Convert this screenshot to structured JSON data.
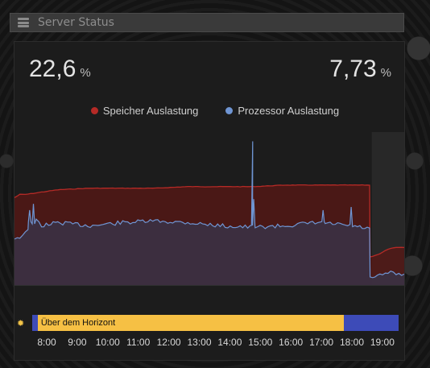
{
  "header": {
    "title": "Server Status",
    "icon": "server-icon"
  },
  "stats": {
    "left": {
      "value": "22,6",
      "unit": "%"
    },
    "right": {
      "value": "7,73",
      "unit": "%"
    }
  },
  "legend": [
    {
      "label": "Speicher Auslastung",
      "color": "#b52a26"
    },
    {
      "label": "Prozessor Auslastung",
      "color": "#6f95d3"
    }
  ],
  "sun": {
    "icon": "sun-icon",
    "segments": [
      {
        "state": "night",
        "label": "",
        "fraction": 0.015,
        "color": "#3d4bb8"
      },
      {
        "state": "day",
        "label": "Über dem Horizont",
        "fraction": 0.835,
        "color": "#f6c044"
      },
      {
        "state": "night",
        "label": "",
        "fraction": 0.15,
        "color": "#3d4bb8"
      }
    ]
  },
  "time_labels": [
    "8:00",
    "9:00",
    "10:00",
    "11:00",
    "12:00",
    "13:00",
    "14:00",
    "15:00",
    "16:00",
    "17:00",
    "18:00",
    "19:00"
  ],
  "chart_data": {
    "type": "area",
    "x_start": "7:40",
    "x_end": "19:40",
    "series": [
      {
        "name": "Speicher Auslastung",
        "color": "#b52a26",
        "points": [
          [
            "7:40",
            56
          ],
          [
            "7:50",
            58
          ],
          [
            "8:00",
            58
          ],
          [
            "8:20",
            59
          ],
          [
            "8:40",
            60
          ],
          [
            "9:00",
            61
          ],
          [
            "10:00",
            62
          ],
          [
            "11:00",
            62
          ],
          [
            "12:00",
            62
          ],
          [
            "13:00",
            63
          ],
          [
            "14:00",
            63
          ],
          [
            "15:00",
            63
          ],
          [
            "16:00",
            64
          ],
          [
            "17:00",
            64
          ],
          [
            "18:00",
            64
          ],
          [
            "18:36",
            64
          ],
          [
            "18:37",
            18
          ],
          [
            "18:55",
            20
          ],
          [
            "19:10",
            23
          ],
          [
            "19:25",
            24
          ],
          [
            "19:40",
            24
          ]
        ]
      },
      {
        "name": "Prozessor Auslastung",
        "color": "#6f95d3",
        "points": [
          [
            "7:40",
            30
          ],
          [
            "7:50",
            31
          ],
          [
            "8:00",
            33
          ],
          [
            "8:10",
            40
          ],
          [
            "8:15",
            38
          ],
          [
            "8:20",
            42
          ],
          [
            "8:30",
            38
          ],
          [
            "9:00",
            40
          ],
          [
            "10:00",
            38
          ],
          [
            "11:00",
            40
          ],
          [
            "12:00",
            41
          ],
          [
            "13:00",
            40
          ],
          [
            "14:00",
            38
          ],
          [
            "15:00",
            37
          ],
          [
            "16:00",
            38
          ],
          [
            "17:00",
            40
          ],
          [
            "18:00",
            38
          ],
          [
            "18:36",
            36
          ],
          [
            "18:37",
            4
          ],
          [
            "18:55",
            6
          ],
          [
            "19:10",
            8
          ],
          [
            "19:25",
            7
          ],
          [
            "19:40",
            7
          ]
        ],
        "spikes": [
          [
            "8:08",
            48
          ],
          [
            "8:15",
            52
          ],
          [
            "15:00",
            92
          ],
          [
            "15:02",
            55
          ],
          [
            "17:10",
            48
          ],
          [
            "18:02",
            50
          ]
        ]
      }
    ],
    "ylim": [
      0,
      100
    ],
    "highlight_from": "18:40"
  }
}
